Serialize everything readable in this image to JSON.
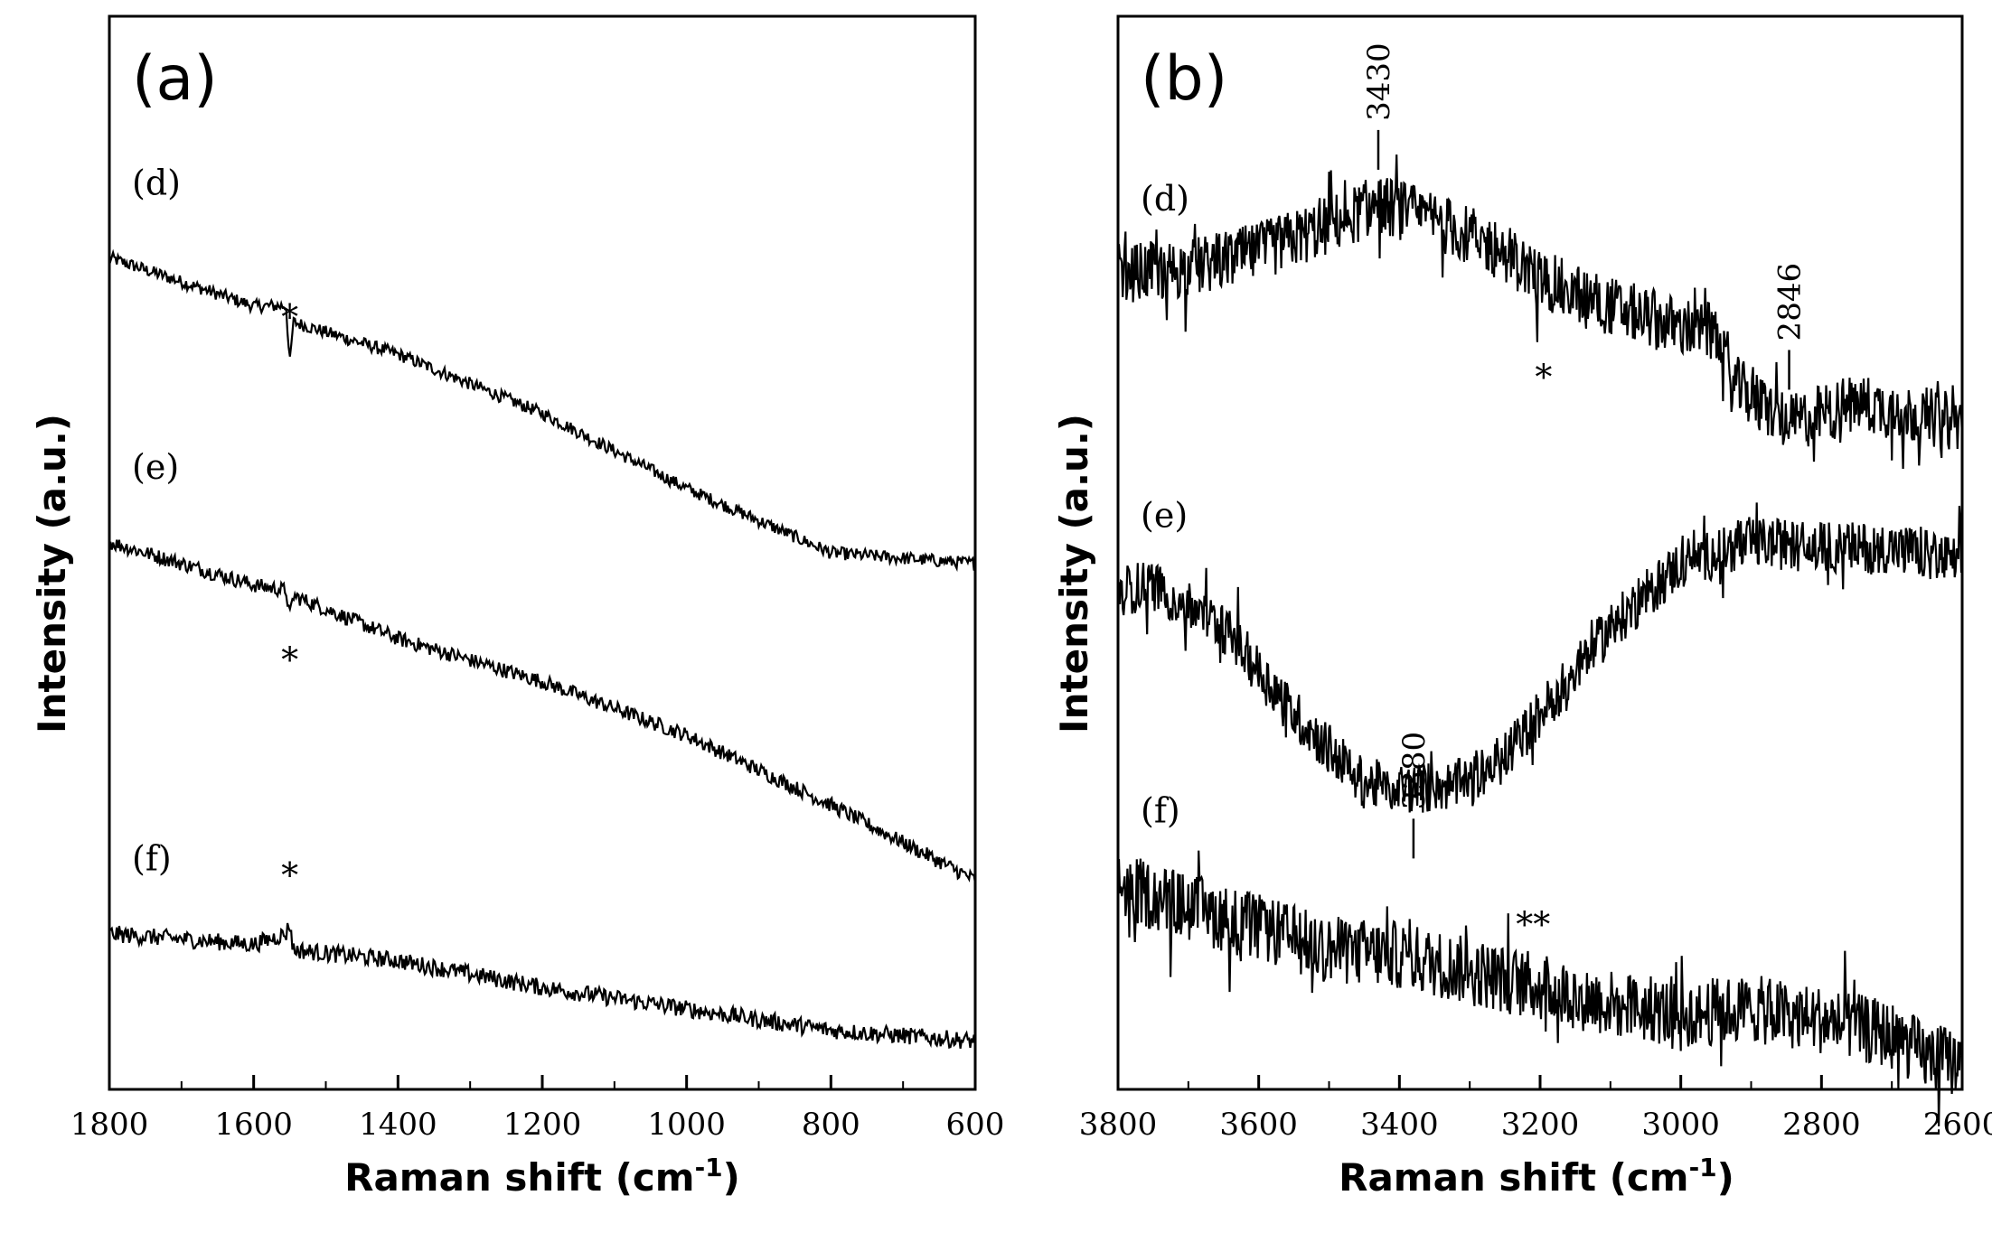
{
  "chart_data": [
    {
      "type": "line",
      "panel_label": "(a)",
      "xlabel": "Raman shift (cm",
      "xlabel_sup": "-1",
      "xlabel_close": ")",
      "ylabel": "Intensity (a.u.)",
      "xlim": [
        1800,
        600
      ],
      "ylim": [
        0,
        10
      ],
      "ticks": [
        1800,
        1600,
        1400,
        1200,
        1000,
        800,
        600
      ],
      "tick_labels": [
        "1800",
        "1600",
        "1400",
        "1200",
        "1000",
        "800",
        "600"
      ],
      "grid": false,
      "series": [
        {
          "name": "(d)",
          "x": [
            1800,
            1600,
            1555,
            1550,
            1545,
            1400,
            1200,
            1000,
            800,
            600
          ],
          "y": [
            7.75,
            7.3,
            7.3,
            6.75,
            7.15,
            6.85,
            6.3,
            5.6,
            5.0,
            4.9
          ],
          "annotations": [
            {
              "x": 1550,
              "text": "*"
            }
          ]
        },
        {
          "name": "(e)",
          "x": [
            1800,
            1600,
            1555,
            1550,
            1545,
            1400,
            1200,
            1000,
            800,
            600
          ],
          "y": [
            5.1,
            4.7,
            4.65,
            4.4,
            4.6,
            4.2,
            3.8,
            3.3,
            2.65,
            1.95
          ],
          "annotations": [
            {
              "x": 1550,
              "text": "*"
            }
          ]
        },
        {
          "name": "(f)",
          "x": [
            1800,
            1600,
            1555,
            1550,
            1545,
            1400,
            1200,
            1000,
            800,
            600
          ],
          "y": [
            1.45,
            1.35,
            1.45,
            1.55,
            1.3,
            1.2,
            0.95,
            0.75,
            0.55,
            0.45
          ],
          "annotations": [
            {
              "x": 1550,
              "text": "*"
            }
          ]
        }
      ]
    },
    {
      "type": "line",
      "panel_label": "(b)",
      "xlabel": "Raman shift (cm",
      "xlabel_sup": "-1",
      "xlabel_close": ")",
      "ylabel": "Intensity (a.u.)",
      "xlim": [
        3800,
        2600
      ],
      "ylim": [
        0,
        10
      ],
      "ticks": [
        3800,
        3600,
        3400,
        3200,
        3000,
        2800,
        2600
      ],
      "tick_labels": [
        "3800",
        "3600",
        "3400",
        "3200",
        "3000",
        "2800",
        "2600"
      ],
      "grid": false,
      "series": [
        {
          "name": "(d)",
          "x": [
            3800,
            3700,
            3600,
            3500,
            3430,
            3350,
            3250,
            3200,
            3100,
            3000,
            2950,
            2930,
            2846,
            2750,
            2600
          ],
          "y": [
            7.6,
            7.65,
            7.8,
            8.05,
            8.25,
            8.1,
            7.8,
            7.55,
            7.3,
            7.1,
            7.05,
            6.6,
            6.2,
            6.4,
            6.2
          ],
          "annotations": [
            {
              "x": 3430,
              "text": "3430"
            },
            {
              "x": 2846,
              "text": "2846"
            },
            {
              "x": 3195,
              "text": "*"
            }
          ]
        },
        {
          "name": "(e)",
          "x": [
            3800,
            3750,
            3650,
            3550,
            3450,
            3380,
            3300,
            3250,
            3200,
            3100,
            3000,
            2900,
            2800,
            2700,
            2600
          ],
          "y": [
            4.65,
            4.7,
            4.3,
            3.5,
            2.85,
            2.8,
            2.85,
            3.1,
            3.5,
            4.3,
            4.9,
            5.1,
            5.05,
            5.05,
            4.9
          ],
          "annotations": [
            {
              "x": 3380,
              "text": "3380"
            }
          ]
        },
        {
          "name": "(f)",
          "x": [
            3800,
            3700,
            3600,
            3500,
            3400,
            3300,
            3200,
            3100,
            3000,
            2900,
            2800,
            2700,
            2650,
            2600
          ],
          "y": [
            1.9,
            1.7,
            1.5,
            1.3,
            1.25,
            1.1,
            0.95,
            0.8,
            0.7,
            0.75,
            0.65,
            0.5,
            0.3,
            0.25
          ],
          "annotations": [
            {
              "x": 3210,
              "text": "**"
            }
          ]
        }
      ]
    }
  ]
}
